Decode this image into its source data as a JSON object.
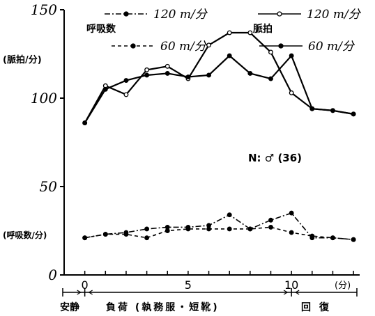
{
  "chart_data": {
    "type": "line",
    "x": [
      0,
      1,
      2,
      3,
      4,
      5,
      6,
      7,
      8,
      9,
      10,
      11,
      12,
      13
    ],
    "x_ticks": [
      {
        "value": 0,
        "label": "0"
      },
      {
        "value": 5,
        "label": "5"
      },
      {
        "value": 10,
        "label": "10"
      }
    ],
    "x_unit_label": "(分)",
    "xlim": [
      -1,
      13.3
    ],
    "ylim": [
      0,
      150
    ],
    "y_ticks": [
      {
        "value": 0,
        "label": "0"
      },
      {
        "value": 50,
        "label": "50"
      },
      {
        "value": 100,
        "label": "100"
      },
      {
        "value": 150,
        "label": "150"
      }
    ],
    "ylabel_hr": "(脈拍/分)",
    "ylabel_rr": "(呼吸数/分)",
    "group_label_rr": "呼吸数",
    "group_label_hr": "脈拍",
    "annotation": "N: ♂ (36)",
    "phases": [
      "安静",
      "負荷 (執務服・短靴)",
      "回復"
    ],
    "series": [
      {
        "name": "120 m/分",
        "group": "hr",
        "dash": "solid",
        "marker": "open",
        "values": [
          86,
          107,
          102,
          116,
          118,
          111,
          130,
          137,
          137,
          126,
          103,
          94,
          93,
          91
        ]
      },
      {
        "name": "60 m/分",
        "group": "hr",
        "dash": "solid",
        "marker": "filled",
        "values": [
          86,
          105,
          110,
          113,
          114,
          112,
          113,
          124,
          114,
          111,
          124,
          94,
          93,
          91
        ]
      },
      {
        "name": "120 m/分",
        "group": "rr",
        "dash": "dashdot",
        "marker": "filled",
        "values": [
          21,
          23,
          24,
          26,
          27,
          27,
          28,
          34,
          26,
          31,
          35,
          21,
          21,
          20
        ]
      },
      {
        "name": "60 m/分",
        "group": "rr",
        "dash": "dashed",
        "marker": "filled",
        "values": [
          21,
          23,
          23,
          21,
          25,
          26,
          26,
          26,
          26,
          27,
          24,
          22,
          21,
          20
        ]
      }
    ],
    "legend_position": "top"
  }
}
